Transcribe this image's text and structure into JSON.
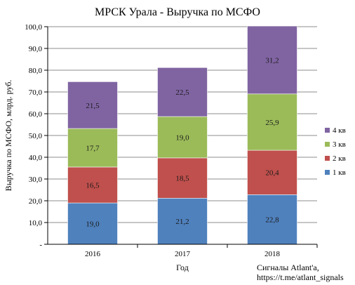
{
  "chart_data": {
    "type": "bar",
    "stacked": true,
    "title": "МРСК Урала - Выручка по МСФО",
    "xlabel": "Год",
    "ylabel": "Выручка по МСФО, млрд. руб.",
    "categories": [
      "2016",
      "2017",
      "2018"
    ],
    "ylim": [
      0,
      100
    ],
    "y_ticks": [
      "-",
      "10,0",
      "20,0",
      "30,0",
      "40,0",
      "50,0",
      "60,0",
      "70,0",
      "80,0",
      "90,0",
      "100,0"
    ],
    "grid": true,
    "legend_position": "right",
    "series": [
      {
        "name": "1 кв",
        "color": "#4f81bd",
        "values": [
          19.0,
          21.2,
          22.8
        ],
        "labels": [
          "19,0",
          "21,2",
          "22,8"
        ]
      },
      {
        "name": "2 кв",
        "color": "#c0504d",
        "values": [
          16.5,
          18.5,
          20.4
        ],
        "labels": [
          "16,5",
          "18,5",
          "20,4"
        ]
      },
      {
        "name": "3 кв",
        "color": "#9bbb59",
        "values": [
          17.7,
          19.0,
          25.9
        ],
        "labels": [
          "17,7",
          "19,0",
          "25,9"
        ]
      },
      {
        "name": "4 кв",
        "color": "#8064a2",
        "values": [
          21.5,
          22.5,
          31.2
        ],
        "labels": [
          "21,5",
          "22,5",
          "31,2"
        ]
      }
    ],
    "source_lines": [
      "Сигналы Atlant'a,",
      "https://t.me/atlant_signals"
    ]
  }
}
